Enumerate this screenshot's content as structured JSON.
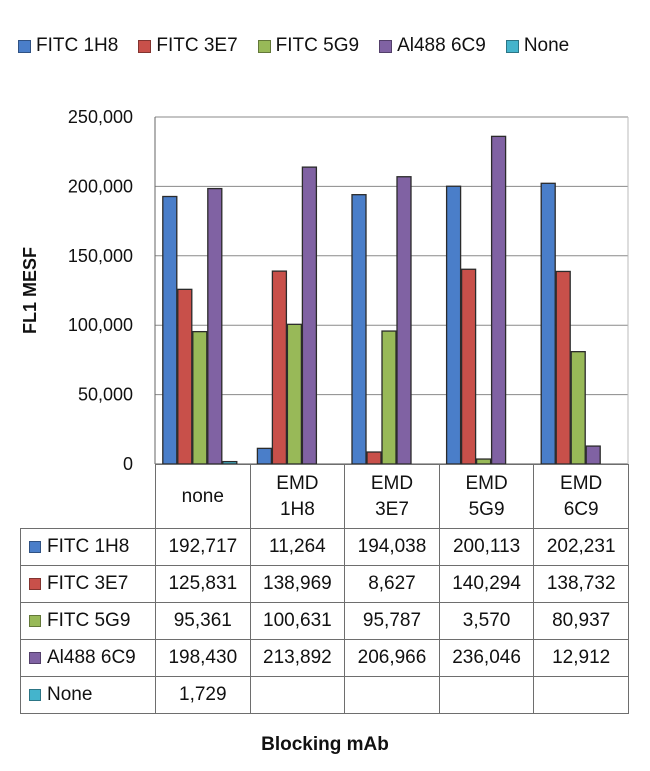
{
  "chart_data": {
    "type": "bar",
    "categories": [
      "none",
      "EMD 1H8",
      "EMD 3E7",
      "EMD 5G9",
      "EMD 6C9"
    ],
    "category_lines": [
      [
        "none"
      ],
      [
        "EMD",
        "1H8"
      ],
      [
        "EMD",
        "3E7"
      ],
      [
        "EMD",
        "5G9"
      ],
      [
        "EMD",
        "6C9"
      ]
    ],
    "series": [
      {
        "name": "FITC 1H8",
        "color": "#4a7ec9",
        "values": [
          192717,
          11264,
          194038,
          200113,
          202231
        ],
        "labels": [
          "192,717",
          "11,264",
          "194,038",
          "200,113",
          "202,231"
        ]
      },
      {
        "name": "FITC 3E7",
        "color": "#c8504a",
        "values": [
          125831,
          138969,
          8627,
          140294,
          138732
        ],
        "labels": [
          "125,831",
          "138,969",
          "8,627",
          "140,294",
          "138,732"
        ]
      },
      {
        "name": "FITC 5G9",
        "color": "#98b958",
        "values": [
          95361,
          100631,
          95787,
          3570,
          80937
        ],
        "labels": [
          "95,361",
          "100,631",
          "95,787",
          "3,570",
          "80,937"
        ]
      },
      {
        "name": "Al488 6C9",
        "color": "#8062a3",
        "values": [
          198430,
          213892,
          206966,
          236046,
          12912
        ],
        "labels": [
          "198,430",
          "213,892",
          "206,966",
          "236,046",
          "12,912"
        ]
      },
      {
        "name": "None",
        "color": "#44b4cc",
        "values": [
          1729,
          null,
          null,
          null,
          null
        ],
        "labels": [
          "1,729",
          "",
          "",
          "",
          ""
        ]
      }
    ],
    "ylabel": "FL1 MESF",
    "xlabel": "Blocking mAb",
    "ylim": [
      0,
      250000
    ],
    "yticks": [
      0,
      50000,
      100000,
      150000,
      200000,
      250000
    ],
    "ytick_labels": [
      "0",
      "50,000",
      "100,000",
      "150,000",
      "200,000",
      "250,000"
    ],
    "grid": true,
    "legend": "top",
    "data_table": true
  }
}
